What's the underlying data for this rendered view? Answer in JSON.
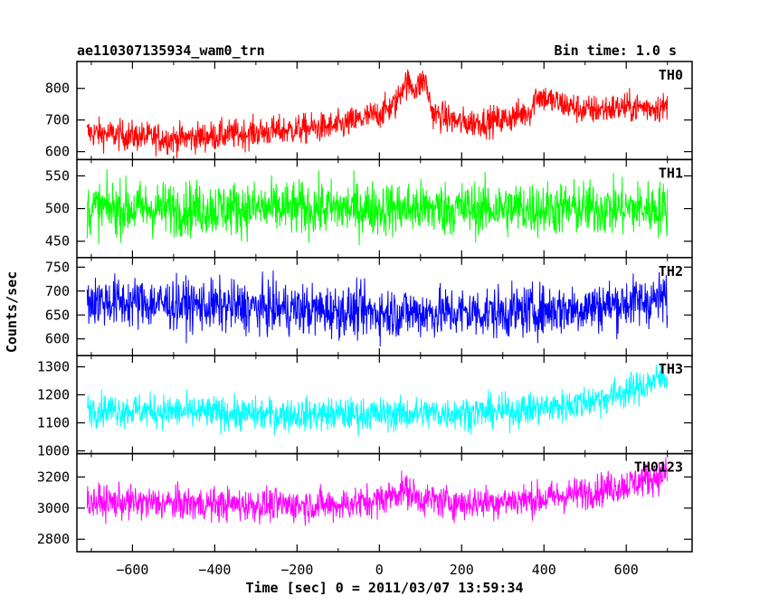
{
  "header": {
    "title": "ae110307135934_wam0_trn",
    "bin_time": "Bin time: 1.0 s"
  },
  "chart_data": {
    "type": "line",
    "title": "ae110307135934_wam0_trn",
    "subtitle": "Bin time: 1.0 s",
    "xlabel": "Time [sec] 0 = 2011/03/07 13:59:34",
    "ylabel": "Counts/sec",
    "xlim": [
      -735,
      760
    ],
    "x_range": [
      -710,
      700
    ],
    "x_ticks": [
      -600,
      -400,
      -200,
      0,
      200,
      400,
      600
    ],
    "grid": false,
    "legend": "none",
    "panels": [
      {
        "name": "TH0",
        "color": "#ff0000",
        "ylim": [
          575,
          885
        ],
        "ticks": [
          600,
          700,
          800
        ],
        "profile": [
          [
            -710,
            660
          ],
          [
            -500,
            640
          ],
          [
            -300,
            660
          ],
          [
            -100,
            680
          ],
          [
            0,
            720
          ],
          [
            40,
            750
          ],
          [
            60,
            820
          ],
          [
            90,
            800
          ],
          [
            110,
            830
          ],
          [
            130,
            720
          ],
          [
            200,
            690
          ],
          [
            300,
            700
          ],
          [
            370,
            730
          ],
          [
            380,
            780
          ],
          [
            420,
            760
          ],
          [
            500,
            730
          ],
          [
            600,
            740
          ],
          [
            700,
            740
          ]
        ],
        "noise": 40
      },
      {
        "name": "TH1",
        "color": "#00ff00",
        "ylim": [
          425,
          575
        ],
        "ticks": [
          450,
          500,
          550
        ],
        "profile": [
          [
            -710,
            500
          ],
          [
            700,
            500
          ]
        ],
        "noise": 35
      },
      {
        "name": "TH2",
        "color": "#0000ff",
        "ylim": [
          565,
          770
        ],
        "ticks": [
          600,
          650,
          700,
          750
        ],
        "profile": [
          [
            -710,
            680
          ],
          [
            -300,
            665
          ],
          [
            0,
            655
          ],
          [
            300,
            655
          ],
          [
            500,
            665
          ],
          [
            700,
            685
          ]
        ],
        "noise": 45
      },
      {
        "name": "TH3",
        "color": "#00ffff",
        "ylim": [
          990,
          1340
        ],
        "ticks": [
          1000,
          1100,
          1200,
          1300
        ],
        "profile": [
          [
            -710,
            1150
          ],
          [
            -300,
            1130
          ],
          [
            0,
            1130
          ],
          [
            300,
            1140
          ],
          [
            450,
            1160
          ],
          [
            550,
            1190
          ],
          [
            620,
            1220
          ],
          [
            700,
            1270
          ]
        ],
        "noise": 50
      },
      {
        "name": "TH0123",
        "color": "#ff00ff",
        "ylim": [
          2720,
          3350
        ],
        "ticks": [
          2800,
          3000,
          3200
        ],
        "profile": [
          [
            -710,
            3040
          ],
          [
            -300,
            3020
          ],
          [
            -100,
            3020
          ],
          [
            0,
            3050
          ],
          [
            60,
            3120
          ],
          [
            100,
            3060
          ],
          [
            200,
            3030
          ],
          [
            400,
            3060
          ],
          [
            500,
            3100
          ],
          [
            600,
            3150
          ],
          [
            700,
            3220
          ]
        ],
        "noise": 90
      }
    ]
  }
}
